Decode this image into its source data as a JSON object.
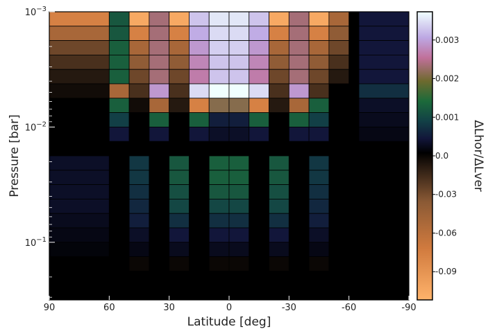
{
  "chart_data": {
    "type": "heatmap",
    "xlabel": "Latitude [deg]",
    "ylabel": "Pressure [bar]",
    "colorbar_label": "ΔLhor/ΔLver",
    "x_ticks": [
      "90",
      "60",
      "30",
      "0",
      "-30",
      "-60",
      "-90"
    ],
    "y_ticks": [
      {
        "base": "10",
        "exp": "−3",
        "value": 0.001
      },
      {
        "base": "10",
        "exp": "−2",
        "value": 0.01
      },
      {
        "base": "10",
        "exp": "−1",
        "value": 0.1
      }
    ],
    "colorbar_ticks": [
      "0.003",
      "0.002",
      "0.001",
      "0.0",
      "-0.03",
      "-0.06",
      "-0.09"
    ],
    "xlim": [
      90,
      -90
    ],
    "ylim_log10": [
      -3,
      -0.5
    ],
    "y_scale": "log",
    "colormap": "diverging: orange (negative) - black (zero) - green/pink/white (positive)",
    "column_latitudes": [
      75,
      55,
      45,
      35,
      25,
      15,
      5,
      -5,
      -15,
      -25,
      -35,
      -45,
      -55,
      -75
    ],
    "row_log10_pressure": [
      -3.05,
      -3.15,
      -3.25,
      -3.35,
      -3.45,
      -3.55,
      -3.65,
      -3.75,
      -3.85,
      -3.95,
      -4.05,
      -4.15,
      -4.25,
      -4.35,
      -4.45,
      -4.55,
      -4.65,
      -4.75,
      -4.85,
      -4.95
    ],
    "values": [
      [
        -0.07,
        0.0011,
        -0.09,
        0.0022,
        -0.09,
        0.0032,
        0.0035,
        0.0035,
        0.0032,
        -0.09,
        0.0022,
        -0.09,
        -0.05,
        0.0003
      ],
      [
        -0.05,
        0.0011,
        -0.07,
        0.0022,
        -0.07,
        0.003,
        0.0034,
        0.0034,
        0.003,
        -0.07,
        0.0022,
        -0.07,
        -0.04,
        0.0003
      ],
      [
        -0.03,
        0.0012,
        -0.05,
        0.0022,
        -0.05,
        0.0028,
        0.0033,
        0.0033,
        0.0028,
        -0.05,
        0.0022,
        -0.05,
        -0.03,
        0.0003
      ],
      [
        -0.02,
        0.0012,
        -0.04,
        0.0022,
        -0.04,
        0.0026,
        0.0032,
        0.0032,
        0.0026,
        -0.04,
        0.0022,
        -0.04,
        -0.02,
        0.0003
      ],
      [
        -0.01,
        0.0012,
        -0.03,
        0.0022,
        -0.03,
        0.0025,
        0.0032,
        0.0032,
        0.0025,
        -0.03,
        0.0022,
        -0.03,
        -0.01,
        0.0003
      ],
      [
        -0.005,
        -0.05,
        -0.02,
        0.0028,
        -0.02,
        0.0034,
        0.0037,
        0.0037,
        0.0034,
        -0.02,
        0.0028,
        -0.02,
        0.0,
        0.0006
      ],
      [
        0.0,
        0.0012,
        -0.005,
        -0.05,
        -0.01,
        -0.07,
        0.002,
        0.002,
        -0.07,
        -0.01,
        -0.05,
        0.0012,
        0.0,
        0.0002
      ],
      [
        0.0,
        0.0008,
        0.0,
        0.0012,
        0.0,
        0.0012,
        0.0004,
        0.0004,
        0.0012,
        0.0,
        0.0012,
        0.0008,
        0.0,
        0.00015
      ],
      [
        0.0,
        0.0003,
        0.0,
        0.0003,
        0.0,
        0.0003,
        0.0002,
        0.0002,
        0.0003,
        0.0,
        0.0003,
        0.0003,
        0.0,
        0.0001
      ],
      [
        0.0,
        0.0,
        0.0,
        0.0,
        0.0,
        0.0,
        0.0,
        0.0,
        0.0,
        0.0,
        0.0,
        0.0,
        0.0,
        0.0
      ],
      [
        0.0002,
        0.0,
        0.0007,
        0.0,
        0.0011,
        0.0,
        0.0012,
        0.0012,
        0.0,
        0.0011,
        0.0,
        0.0007,
        0.0,
        0.0
      ],
      [
        0.0002,
        0.0,
        0.0007,
        0.0,
        0.0011,
        0.0,
        0.0012,
        0.0012,
        0.0,
        0.0011,
        0.0,
        0.0007,
        0.0,
        0.0
      ],
      [
        0.0002,
        0.0,
        0.0006,
        0.0,
        0.001,
        0.0,
        0.0011,
        0.0011,
        0.0,
        0.001,
        0.0,
        0.0006,
        0.0,
        0.0
      ],
      [
        0.0002,
        0.0,
        0.0005,
        0.0,
        0.0009,
        0.0,
        0.0009,
        0.0009,
        0.0,
        0.0009,
        0.0,
        0.0005,
        0.0,
        0.0
      ],
      [
        0.00015,
        0.0,
        0.0004,
        0.0,
        0.0006,
        0.0,
        0.0006,
        0.0006,
        0.0,
        0.0006,
        0.0,
        0.0004,
        0.0,
        0.0
      ],
      [
        0.0001,
        0.0,
        0.0002,
        0.0,
        0.0003,
        0.0,
        0.0003,
        0.0003,
        0.0,
        0.0003,
        0.0,
        0.0002,
        0.0,
        0.0
      ],
      [
        5e-05,
        0.0,
        0.0001,
        0.0,
        0.00015,
        0.0,
        0.00015,
        0.00015,
        0.0,
        0.00015,
        0.0,
        0.0001,
        0.0,
        0.0
      ],
      [
        0.0,
        0.0,
        -0.003,
        0.0,
        -0.003,
        0.0,
        -0.003,
        -0.003,
        0.0,
        -0.003,
        0.0,
        -0.003,
        0.0,
        0.0
      ],
      [
        0.0,
        0.0,
        0.0,
        0.0,
        0.0,
        0.0,
        0.0,
        0.0,
        0.0,
        0.0,
        0.0,
        0.0,
        0.0,
        0.0
      ],
      [
        0.0,
        0.0,
        0.0,
        0.0,
        0.0,
        0.0,
        0.0,
        0.0,
        0.0,
        0.0,
        0.0,
        0.0,
        0.0,
        0.0
      ]
    ],
    "grid": false,
    "colorbar_position": "right"
  }
}
